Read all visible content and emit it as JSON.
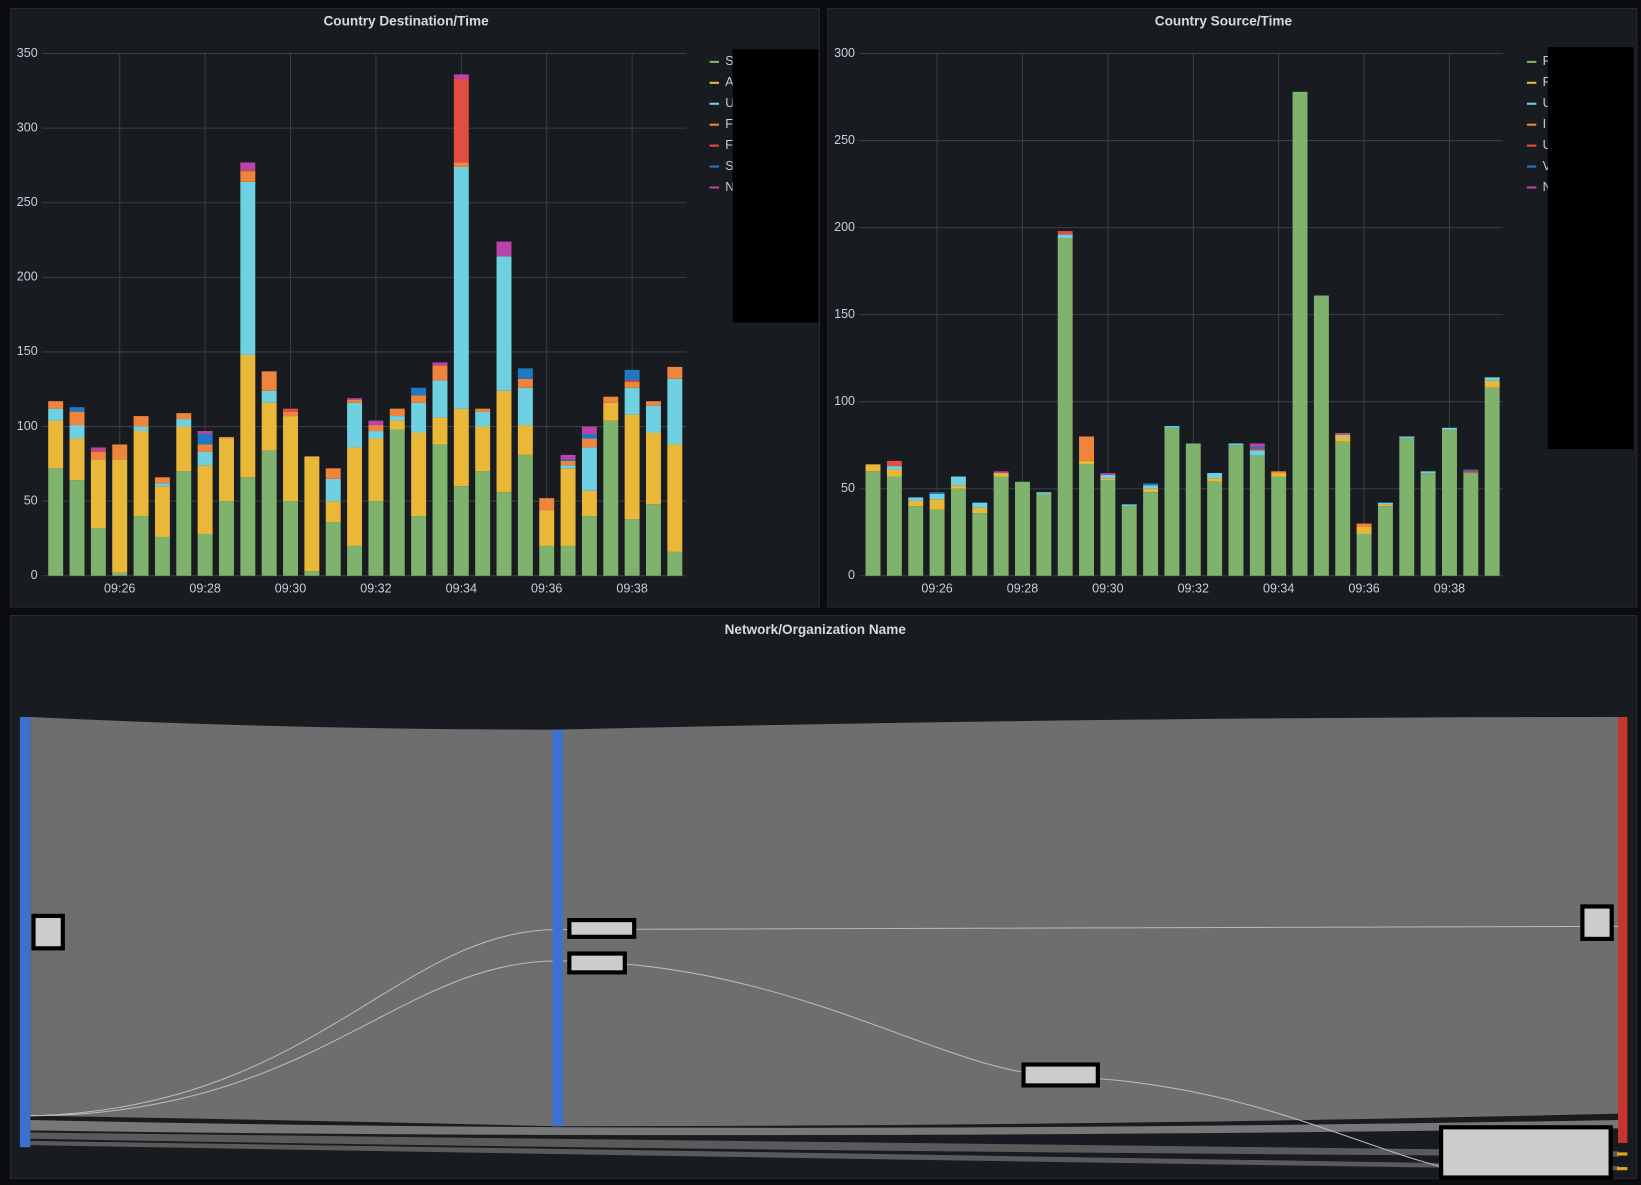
{
  "chart_data": [
    {
      "type": "stacked_bar",
      "title": "Country Destination/Time",
      "categories": [
        null,
        null,
        null,
        "09:26",
        null,
        null,
        null,
        "09:28",
        null,
        null,
        null,
        "09:30",
        null,
        null,
        null,
        "09:32",
        null,
        null,
        null,
        "09:34",
        null,
        null,
        null,
        "09:36",
        null,
        null,
        null,
        "09:38",
        null,
        null
      ],
      "ylim": [
        0,
        350
      ],
      "yticks": [
        0,
        50,
        100,
        150,
        200,
        250,
        300,
        350
      ],
      "grid": true,
      "legend": "right",
      "series": [
        {
          "name": "S",
          "color": "#7eb26d",
          "values": [
            72,
            64,
            32,
            2,
            40,
            26,
            70,
            28,
            50,
            66,
            84,
            50,
            3,
            36,
            20,
            50,
            98,
            40,
            88,
            60,
            70,
            56,
            81,
            20,
            20,
            40,
            104,
            38,
            48,
            16
          ]
        },
        {
          "name": "A",
          "color": "#eab839",
          "values": [
            32,
            28,
            46,
            76,
            57,
            34,
            30,
            46,
            42,
            82,
            32,
            57,
            77,
            14,
            66,
            42,
            6,
            56,
            18,
            52,
            30,
            68,
            20,
            24,
            52,
            17,
            12,
            70,
            48,
            72
          ]
        },
        {
          "name": "U",
          "color": "#6ed0e0",
          "values": [
            8,
            9,
            0,
            0,
            3,
            2,
            5,
            9,
            0,
            116,
            8,
            0,
            0,
            15,
            30,
            5,
            3,
            20,
            25,
            162,
            10,
            90,
            25,
            0,
            2,
            29,
            0,
            18,
            18,
            44
          ]
        },
        {
          "name": "F",
          "color": "#ef843c",
          "values": [
            5,
            9,
            5,
            10,
            7,
            4,
            4,
            5,
            1,
            7,
            13,
            3,
            0,
            7,
            2,
            4,
            5,
            5,
            10,
            3,
            2,
            0,
            6,
            8,
            3,
            6,
            4,
            4,
            3,
            8
          ]
        },
        {
          "name": "F",
          "color": "#e24d42",
          "values": [
            0,
            0,
            1,
            0,
            0,
            0,
            0,
            0,
            0,
            1,
            0,
            2,
            0,
            0,
            0,
            0,
            0,
            0,
            0,
            56,
            0,
            0,
            0,
            0,
            0,
            0,
            0,
            1,
            0,
            0
          ]
        },
        {
          "name": "S",
          "color": "#1f78c1",
          "values": [
            0,
            3,
            0,
            0,
            0,
            0,
            0,
            7,
            0,
            0,
            0,
            0,
            0,
            0,
            0,
            0,
            0,
            5,
            0,
            0,
            0,
            0,
            7,
            0,
            1,
            3,
            0,
            7,
            0,
            0
          ]
        },
        {
          "name": "N",
          "color": "#ba43a9",
          "values": [
            0,
            0,
            2,
            0,
            0,
            0,
            0,
            2,
            0,
            5,
            0,
            0,
            0,
            0,
            1,
            3,
            0,
            0,
            2,
            3,
            0,
            10,
            0,
            0,
            3,
            5,
            0,
            0,
            0,
            0
          ]
        }
      ]
    },
    {
      "type": "stacked_bar",
      "title": "Country Source/Time",
      "categories": [
        null,
        null,
        null,
        "09:26",
        null,
        null,
        null,
        "09:28",
        null,
        null,
        null,
        "09:30",
        null,
        null,
        null,
        "09:32",
        null,
        null,
        null,
        "09:34",
        null,
        null,
        null,
        "09:36",
        null,
        null,
        null,
        "09:38",
        null,
        null
      ],
      "ylim": [
        0,
        300
      ],
      "yticks": [
        0,
        50,
        100,
        150,
        200,
        250,
        300
      ],
      "grid": true,
      "legend": "right",
      "series": [
        {
          "name": "F",
          "color": "#7eb26d",
          "values": [
            60,
            57,
            40,
            38,
            50,
            36,
            57,
            54,
            47,
            194,
            64,
            55,
            40,
            48,
            85,
            76,
            54,
            75,
            69,
            57,
            278,
            161,
            77,
            24,
            40,
            79,
            59,
            84,
            59,
            108
          ]
        },
        {
          "name": "F",
          "color": "#eab839",
          "values": [
            4,
            4,
            3,
            6,
            2,
            3,
            2,
            0,
            0,
            0,
            2,
            1,
            0,
            2,
            0,
            0,
            2,
            0,
            0,
            2,
            0,
            0,
            3,
            4,
            1,
            0,
            0,
            0,
            0,
            4
          ]
        },
        {
          "name": "U",
          "color": "#6ed0e0",
          "values": [
            0,
            2,
            2,
            3,
            5,
            3,
            0,
            0,
            1,
            2,
            0,
            2,
            1,
            2,
            1,
            0,
            3,
            1,
            3,
            0,
            0,
            0,
            1,
            0,
            1,
            1,
            1,
            1,
            0,
            2
          ]
        },
        {
          "name": "I",
          "color": "#ef843c",
          "values": [
            0,
            0,
            0,
            0,
            0,
            0,
            0,
            0,
            0,
            0,
            14,
            0,
            0,
            0,
            0,
            0,
            0,
            0,
            0,
            1,
            0,
            0,
            0,
            2,
            0,
            0,
            0,
            0,
            0,
            0
          ]
        },
        {
          "name": "U",
          "color": "#e24d42",
          "values": [
            0,
            3,
            0,
            0,
            0,
            0,
            0,
            0,
            0,
            2,
            0,
            0,
            0,
            0,
            0,
            0,
            0,
            0,
            1,
            0,
            0,
            0,
            1,
            0,
            0,
            0,
            0,
            0,
            1,
            0
          ]
        },
        {
          "name": "V",
          "color": "#1f78c1",
          "values": [
            0,
            0,
            0,
            1,
            0,
            0,
            0,
            0,
            0,
            0,
            0,
            0,
            0,
            1,
            0,
            0,
            0,
            0,
            1,
            0,
            0,
            0,
            0,
            0,
            0,
            0,
            0,
            0,
            1,
            0
          ]
        },
        {
          "name": "N",
          "color": "#ba43a9",
          "values": [
            0,
            0,
            0,
            0,
            0,
            0,
            1,
            0,
            0,
            0,
            0,
            1,
            0,
            0,
            0,
            0,
            0,
            0,
            2,
            0,
            0,
            0,
            0,
            0,
            0,
            0,
            0,
            0,
            0,
            0
          ]
        }
      ]
    }
  ],
  "sankey": {
    "title": "Network/Organization Name"
  }
}
